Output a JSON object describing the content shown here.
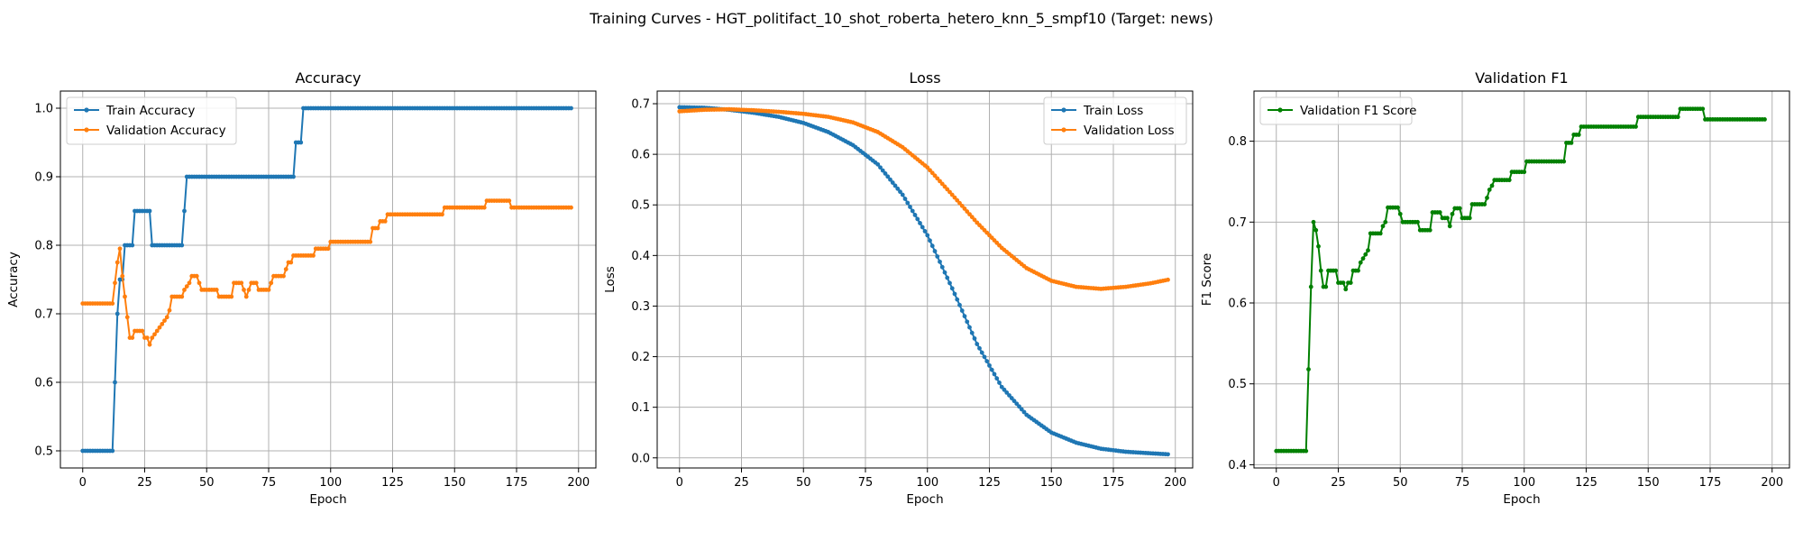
{
  "figure": {
    "title": "Training Curves - HGT_politifact_10_shot_roberta_hetero_knn_5_smpf10 (Target: news)"
  },
  "chart_data": [
    {
      "type": "line",
      "title": "Accuracy",
      "xlabel": "Epoch",
      "ylabel": "Accuracy",
      "xlim": [
        -9,
        207
      ],
      "ylim": [
        0.475,
        1.025
      ],
      "xticks": [
        0,
        25,
        50,
        75,
        100,
        125,
        150,
        175,
        200
      ],
      "yticks": [
        0.5,
        0.6,
        0.7,
        0.8,
        0.9,
        1.0
      ],
      "ytick_labels": [
        "0.5",
        "0.6",
        "0.7",
        "0.8",
        "0.9",
        "1.0"
      ],
      "grid": true,
      "legend_position": "upper left",
      "series": [
        {
          "name": "Train Accuracy",
          "color": "#1f77b4",
          "points": [
            [
              0,
              0.5
            ],
            [
              12,
              0.5
            ],
            [
              13,
              0.6
            ],
            [
              14,
              0.7
            ],
            [
              15,
              0.75
            ],
            [
              16,
              0.75
            ],
            [
              17,
              0.8
            ],
            [
              20,
              0.8
            ],
            [
              21,
              0.85
            ],
            [
              27,
              0.85
            ],
            [
              28,
              0.8
            ],
            [
              40,
              0.8
            ],
            [
              41,
              0.85
            ],
            [
              42,
              0.9
            ],
            [
              85,
              0.9
            ],
            [
              86,
              0.95
            ],
            [
              88,
              0.95
            ],
            [
              89,
              1.0
            ],
            [
              197,
              1.0
            ]
          ]
        },
        {
          "name": "Validation Accuracy",
          "color": "#ff7f0e",
          "points": [
            [
              0,
              0.715
            ],
            [
              12,
              0.715
            ],
            [
              13,
              0.745
            ],
            [
              14,
              0.775
            ],
            [
              15,
              0.795
            ],
            [
              16,
              0.755
            ],
            [
              17,
              0.725
            ],
            [
              18,
              0.695
            ],
            [
              19,
              0.665
            ],
            [
              20,
              0.665
            ],
            [
              21,
              0.675
            ],
            [
              24,
              0.675
            ],
            [
              25,
              0.665
            ],
            [
              26,
              0.665
            ],
            [
              27,
              0.655
            ],
            [
              28,
              0.665
            ],
            [
              30,
              0.675
            ],
            [
              32,
              0.685
            ],
            [
              34,
              0.695
            ],
            [
              35,
              0.705
            ],
            [
              36,
              0.725
            ],
            [
              40,
              0.725
            ],
            [
              41,
              0.735
            ],
            [
              43,
              0.745
            ],
            [
              44,
              0.755
            ],
            [
              46,
              0.755
            ],
            [
              47,
              0.745
            ],
            [
              48,
              0.735
            ],
            [
              54,
              0.735
            ],
            [
              55,
              0.725
            ],
            [
              60,
              0.725
            ],
            [
              61,
              0.745
            ],
            [
              64,
              0.745
            ],
            [
              65,
              0.735
            ],
            [
              66,
              0.725
            ],
            [
              67,
              0.735
            ],
            [
              68,
              0.745
            ],
            [
              70,
              0.745
            ],
            [
              71,
              0.735
            ],
            [
              75,
              0.735
            ],
            [
              76,
              0.745
            ],
            [
              77,
              0.755
            ],
            [
              81,
              0.755
            ],
            [
              82,
              0.765
            ],
            [
              83,
              0.775
            ],
            [
              84,
              0.775
            ],
            [
              85,
              0.785
            ],
            [
              93,
              0.785
            ],
            [
              94,
              0.795
            ],
            [
              99,
              0.795
            ],
            [
              100,
              0.805
            ],
            [
              116,
              0.805
            ],
            [
              117,
              0.825
            ],
            [
              119,
              0.825
            ],
            [
              120,
              0.835
            ],
            [
              122,
              0.835
            ],
            [
              123,
              0.845
            ],
            [
              145,
              0.845
            ],
            [
              146,
              0.855
            ],
            [
              162,
              0.855
            ],
            [
              163,
              0.865
            ],
            [
              172,
              0.865
            ],
            [
              173,
              0.855
            ],
            [
              197,
              0.855
            ]
          ]
        }
      ]
    },
    {
      "type": "line",
      "title": "Loss",
      "xlabel": "Epoch",
      "ylabel": "Loss",
      "xlim": [
        -9,
        207
      ],
      "ylim": [
        -0.02,
        0.725
      ],
      "xticks": [
        0,
        25,
        50,
        75,
        100,
        125,
        150,
        175,
        200
      ],
      "yticks": [
        0.0,
        0.1,
        0.2,
        0.3,
        0.4,
        0.5,
        0.6,
        0.7
      ],
      "ytick_labels": [
        "0.0",
        "0.1",
        "0.2",
        "0.3",
        "0.4",
        "0.5",
        "0.6",
        "0.7"
      ],
      "grid": true,
      "legend_position": "upper right",
      "series": [
        {
          "name": "Train Loss",
          "color": "#1f77b4",
          "points": [
            [
              0,
              0.693
            ],
            [
              10,
              0.692
            ],
            [
              20,
              0.688
            ],
            [
              30,
              0.682
            ],
            [
              40,
              0.674
            ],
            [
              50,
              0.662
            ],
            [
              60,
              0.644
            ],
            [
              70,
              0.618
            ],
            [
              80,
              0.58
            ],
            [
              90,
              0.52
            ],
            [
              100,
              0.44
            ],
            [
              110,
              0.335
            ],
            [
              120,
              0.225
            ],
            [
              130,
              0.14
            ],
            [
              140,
              0.085
            ],
            [
              150,
              0.05
            ],
            [
              160,
              0.03
            ],
            [
              170,
              0.018
            ],
            [
              180,
              0.012
            ],
            [
              190,
              0.009
            ],
            [
              197,
              0.007
            ]
          ]
        },
        {
          "name": "Validation Loss",
          "color": "#ff7f0e",
          "points": [
            [
              0,
              0.685
            ],
            [
              10,
              0.688
            ],
            [
              20,
              0.689
            ],
            [
              30,
              0.687
            ],
            [
              40,
              0.684
            ],
            [
              50,
              0.68
            ],
            [
              60,
              0.674
            ],
            [
              70,
              0.663
            ],
            [
              80,
              0.644
            ],
            [
              90,
              0.614
            ],
            [
              100,
              0.574
            ],
            [
              110,
              0.52
            ],
            [
              120,
              0.465
            ],
            [
              130,
              0.415
            ],
            [
              140,
              0.375
            ],
            [
              150,
              0.35
            ],
            [
              160,
              0.338
            ],
            [
              170,
              0.334
            ],
            [
              180,
              0.338
            ],
            [
              190,
              0.345
            ],
            [
              197,
              0.352
            ]
          ]
        }
      ]
    },
    {
      "type": "line",
      "title": "Validation F1",
      "xlabel": "Epoch",
      "ylabel": "F1 Score",
      "xlim": [
        -9,
        207
      ],
      "ylim": [
        0.396,
        0.862
      ],
      "xticks": [
        0,
        25,
        50,
        75,
        100,
        125,
        150,
        175,
        200
      ],
      "yticks": [
        0.4,
        0.5,
        0.6,
        0.7,
        0.8
      ],
      "ytick_labels": [
        "0.4",
        "0.5",
        "0.6",
        "0.7",
        "0.8"
      ],
      "grid": true,
      "legend_position": "upper left",
      "series": [
        {
          "name": "Validation F1 Score",
          "color": "#008000",
          "points": [
            [
              0,
              0.417
            ],
            [
              12,
              0.417
            ],
            [
              13,
              0.518
            ],
            [
              14,
              0.62
            ],
            [
              15,
              0.7
            ],
            [
              16,
              0.69
            ],
            [
              17,
              0.67
            ],
            [
              18,
              0.64
            ],
            [
              19,
              0.62
            ],
            [
              20,
              0.62
            ],
            [
              21,
              0.64
            ],
            [
              24,
              0.64
            ],
            [
              25,
              0.625
            ],
            [
              27,
              0.625
            ],
            [
              28,
              0.617
            ],
            [
              29,
              0.625
            ],
            [
              30,
              0.625
            ],
            [
              31,
              0.64
            ],
            [
              33,
              0.64
            ],
            [
              34,
              0.65
            ],
            [
              35,
              0.655
            ],
            [
              36,
              0.66
            ],
            [
              37,
              0.665
            ],
            [
              38,
              0.686
            ],
            [
              42,
              0.686
            ],
            [
              43,
              0.695
            ],
            [
              44,
              0.7
            ],
            [
              45,
              0.718
            ],
            [
              49,
              0.718
            ],
            [
              50,
              0.71
            ],
            [
              51,
              0.7
            ],
            [
              57,
              0.7
            ],
            [
              58,
              0.69
            ],
            [
              62,
              0.69
            ],
            [
              63,
              0.712
            ],
            [
              66,
              0.712
            ],
            [
              67,
              0.705
            ],
            [
              69,
              0.705
            ],
            [
              70,
              0.695
            ],
            [
              71,
              0.71
            ],
            [
              72,
              0.717
            ],
            [
              74,
              0.717
            ],
            [
              75,
              0.705
            ],
            [
              78,
              0.705
            ],
            [
              79,
              0.722
            ],
            [
              84,
              0.722
            ],
            [
              85,
              0.73
            ],
            [
              86,
              0.74
            ],
            [
              87,
              0.745
            ],
            [
              88,
              0.752
            ],
            [
              94,
              0.752
            ],
            [
              95,
              0.762
            ],
            [
              100,
              0.762
            ],
            [
              101,
              0.775
            ],
            [
              116,
              0.775
            ],
            [
              117,
              0.798
            ],
            [
              119,
              0.798
            ],
            [
              120,
              0.808
            ],
            [
              122,
              0.808
            ],
            [
              123,
              0.818
            ],
            [
              145,
              0.818
            ],
            [
              146,
              0.83
            ],
            [
              162,
              0.83
            ],
            [
              163,
              0.84
            ],
            [
              172,
              0.84
            ],
            [
              173,
              0.827
            ],
            [
              197,
              0.827
            ]
          ]
        }
      ]
    }
  ]
}
